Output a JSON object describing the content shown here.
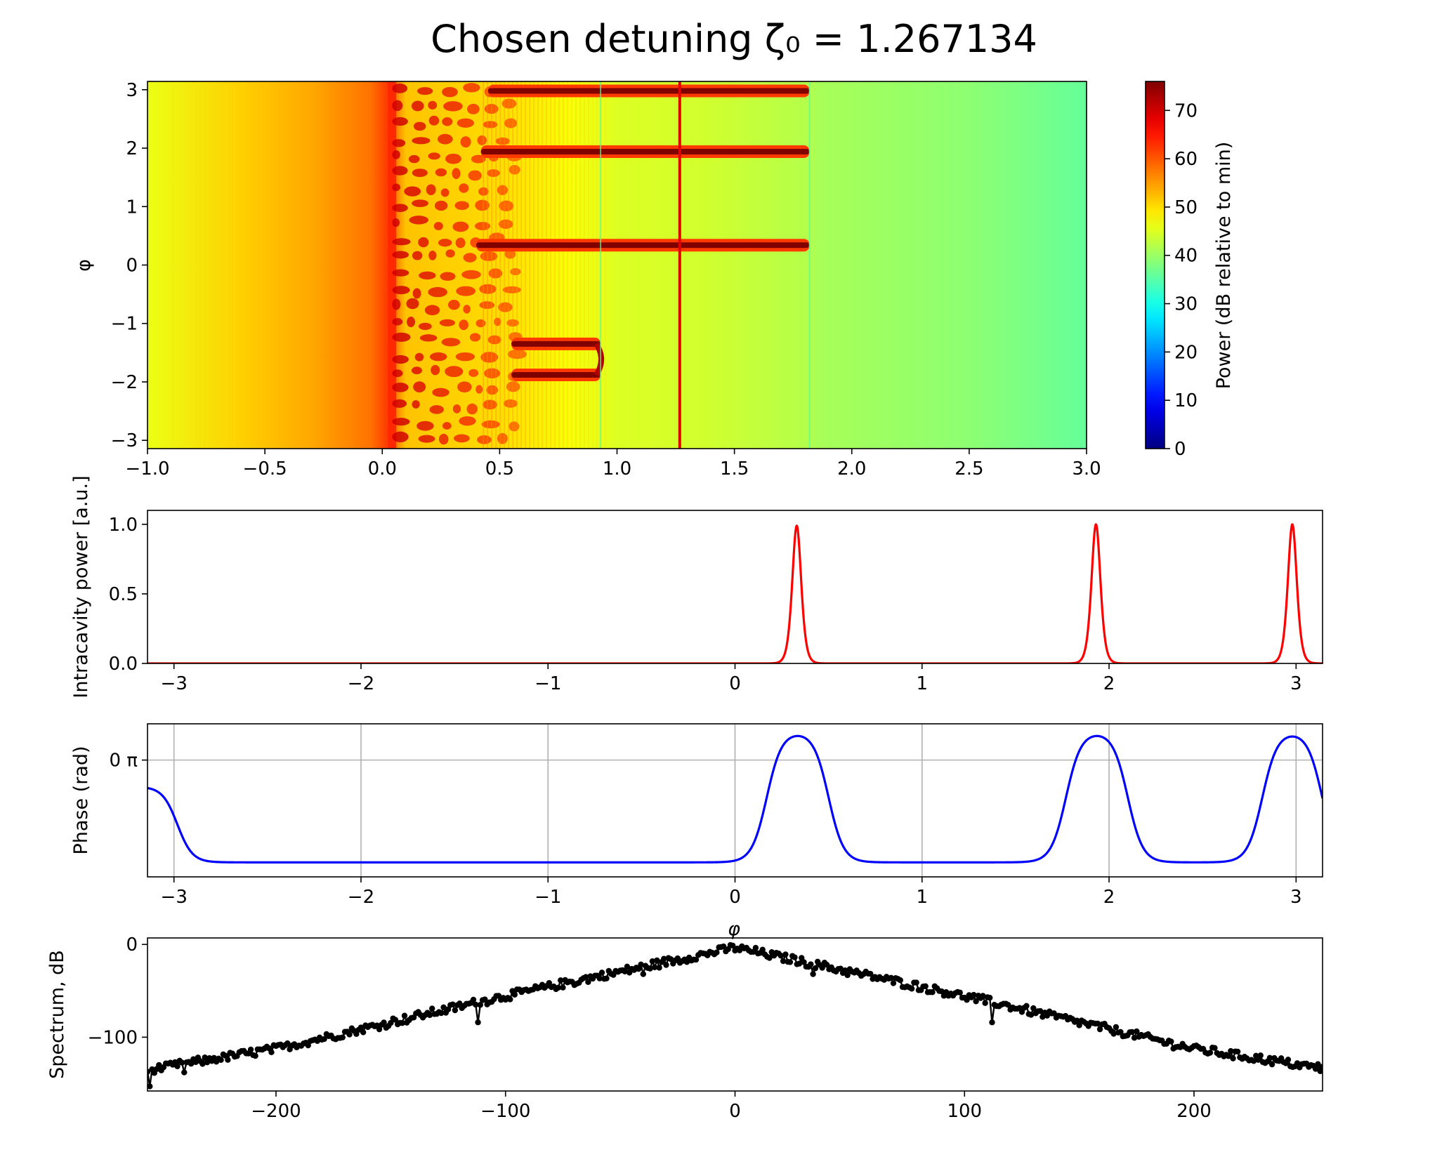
{
  "figure": {
    "title": "Chosen detuning ζ₀ = 1.267134"
  },
  "colors": {
    "trace_power": "#ff0000",
    "trace_phase": "#0000ff",
    "trace_spectrum": "#000000",
    "marker_line": "#e00000",
    "grid": "#b0b0b0",
    "axes": "#000000"
  },
  "chart_data": [
    {
      "id": "heatmap",
      "type": "heatmap",
      "title": "",
      "xlabel": "",
      "ylabel": "φ",
      "xlim": [
        -1.0,
        3.0
      ],
      "ylim": [
        -3.14159,
        3.14159
      ],
      "x_ticks": [
        -1.0,
        -0.5,
        0.0,
        0.5,
        1.0,
        1.5,
        2.0,
        2.5,
        3.0
      ],
      "x_tick_labels": [
        "−1.0",
        "−0.5",
        "0.0",
        "0.5",
        "1.0",
        "1.5",
        "2.0",
        "2.5",
        "3.0"
      ],
      "y_ticks": [
        3,
        2,
        1,
        0,
        -1,
        -2,
        -3
      ],
      "y_tick_labels": [
        "3",
        "2",
        "1",
        "0",
        "−1",
        "−2",
        "−3"
      ],
      "colormap": "jet",
      "colorbar": {
        "label": "Power (dB relative to min)",
        "range": [
          0,
          76
        ],
        "ticks": [
          0,
          10,
          20,
          30,
          40,
          50,
          60,
          70
        ],
        "tick_labels": [
          "0",
          "10",
          "20",
          "30",
          "40",
          "50",
          "60",
          "70"
        ]
      },
      "background_columns": [
        {
          "x": -1.0,
          "db": 46
        },
        {
          "x": -0.6,
          "db": 51
        },
        {
          "x": -0.3,
          "db": 54
        },
        {
          "x": -0.05,
          "db": 58
        },
        {
          "x": 0.02,
          "db": 62
        },
        {
          "x": 0.1,
          "db": 52
        },
        {
          "x": 0.5,
          "db": 50
        },
        {
          "x": 0.8,
          "db": 47
        },
        {
          "x": 1.0,
          "db": 45
        },
        {
          "x": 1.4,
          "db": 44
        },
        {
          "x": 1.8,
          "db": 42
        },
        {
          "x": 1.86,
          "db": 41
        },
        {
          "x": 2.5,
          "db": 39
        },
        {
          "x": 3.0,
          "db": 36
        }
      ],
      "chaotic_region": {
        "x_start": 0.03,
        "x_end": 0.55,
        "db": 64
      },
      "soliton_bands": [
        {
          "phi": 2.98,
          "x_start": 0.45,
          "x_end": 1.82,
          "db": 68
        },
        {
          "phi": 1.94,
          "x_start": 0.42,
          "x_end": 1.82,
          "db": 68
        },
        {
          "phi": 0.34,
          "x_start": 0.4,
          "x_end": 1.82,
          "db": 68
        },
        {
          "phi": -1.35,
          "x_start": 0.55,
          "x_end": 0.93,
          "db": 68
        },
        {
          "phi": -1.88,
          "x_start": 0.55,
          "x_end": 0.93,
          "db": 68
        }
      ],
      "marker_x": 1.267134
    },
    {
      "id": "intracavity-power",
      "type": "line",
      "xlabel": "",
      "ylabel": "Intracavity power [a.u.]",
      "xlim": [
        -3.14159,
        3.14159
      ],
      "ylim": [
        0.0,
        1.1
      ],
      "x_ticks": [
        -3,
        -2,
        -1,
        0,
        1,
        2,
        3
      ],
      "x_tick_labels": [
        "−3",
        "−2",
        "−1",
        "0",
        "1",
        "2",
        "3"
      ],
      "y_ticks": [
        0.0,
        0.5,
        1.0
      ],
      "y_tick_labels": [
        "0.0",
        "0.5",
        "1.0"
      ],
      "series": [
        {
          "peaks": [
            {
              "center": 0.33,
              "height": 0.99,
              "width": 0.032
            },
            {
              "center": 1.93,
              "height": 1.0,
              "width": 0.032
            },
            {
              "center": 2.98,
              "height": 1.0,
              "width": 0.032
            }
          ],
          "baseline": 0.0
        }
      ]
    },
    {
      "id": "phase",
      "type": "line",
      "xlabel": "φ",
      "ylabel": "Phase (rad)",
      "xlim": [
        -3.14159,
        3.14159
      ],
      "ylim": [
        -1.45,
        0.45
      ],
      "grid": true,
      "x_ticks": [
        -3,
        -2,
        -1,
        0,
        1,
        2,
        3
      ],
      "x_tick_labels": [
        "−3",
        "−2",
        "−1",
        "0",
        "1",
        "2",
        "3"
      ],
      "y_ticks": [
        0.0
      ],
      "y_tick_labels": [
        "0 π"
      ],
      "series": [
        {
          "low": -1.27,
          "high": 0.35,
          "pulses": [
            {
              "rise": 0.17,
              "fall": 0.5
            },
            {
              "rise": 1.77,
              "fall": 2.1
            },
            {
              "rise": 2.82,
              "fall": 3.14
            }
          ],
          "edge_width": 0.04,
          "left_edge_value": -0.4
        }
      ]
    },
    {
      "id": "spectrum",
      "type": "scatter",
      "xlabel": "",
      "ylabel": "Spectrum, dB",
      "xlim": [
        -256,
        256
      ],
      "ylim": [
        -158,
        7
      ],
      "x_ticks": [
        -200,
        -100,
        0,
        100,
        200
      ],
      "x_tick_labels": [
        "−200",
        "−100",
        "0",
        "100",
        "200"
      ],
      "y_ticks": [
        0,
        -100
      ],
      "y_tick_labels": [
        "0",
        "−100"
      ],
      "series": [
        {
          "envelope": [
            {
              "x": -256,
              "y": -135
            },
            {
              "x": -200,
              "y": -112
            },
            {
              "x": -100,
              "y": -55
            },
            {
              "x": 0,
              "y": -3
            },
            {
              "x": 100,
              "y": -55
            },
            {
              "x": 200,
              "y": -112
            },
            {
              "x": 256,
              "y": -133
            }
          ],
          "dips": [
            {
              "x": -112,
              "y": -84
            },
            {
              "x": 112,
              "y": -84
            },
            {
              "x": -40,
              "y": -32
            },
            {
              "x": 34,
              "y": -32
            },
            {
              "x": -255,
              "y": -153
            },
            {
              "x": -240,
              "y": -138
            }
          ],
          "noise_amplitude": 9
        }
      ]
    }
  ]
}
